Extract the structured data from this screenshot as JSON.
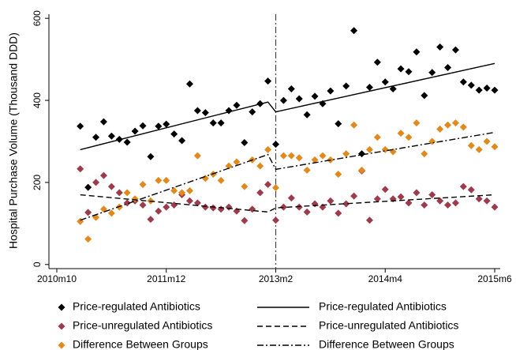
{
  "chart_data": {
    "type": "scatter",
    "y_label": "Hospital Purchase Volume (Thousand DDD)",
    "xlim": [
      "2010m10",
      "2015m6"
    ],
    "xticks": [
      "2010m10",
      "2011m12",
      "2013m2",
      "2014m4",
      "2015m6"
    ],
    "ylim": [
      -10,
      610
    ],
    "yticks": [
      0,
      200,
      400,
      600
    ],
    "intervention": "2013m2",
    "x": [
      "2011m1",
      "2011m2",
      "2011m3",
      "2011m4",
      "2011m5",
      "2011m6",
      "2011m7",
      "2011m8",
      "2011m9",
      "2011m10",
      "2011m11",
      "2011m12",
      "2012m1",
      "2012m2",
      "2012m3",
      "2012m4",
      "2012m5",
      "2012m6",
      "2012m7",
      "2012m8",
      "2012m9",
      "2012m10",
      "2012m11",
      "2012m12",
      "2013m1",
      "2013m2",
      "2013m3",
      "2013m4",
      "2013m5",
      "2013m6",
      "2013m7",
      "2013m8",
      "2013m9",
      "2013m10",
      "2013m11",
      "2013m12",
      "2014m1",
      "2014m2",
      "2014m3",
      "2014m4",
      "2014m5",
      "2014m6",
      "2014m7",
      "2014m8",
      "2014m9",
      "2014m10",
      "2014m11",
      "2014m12",
      "2015m1",
      "2015m2",
      "2015m3",
      "2015m4",
      "2015m5",
      "2015m6"
    ],
    "series": [
      {
        "name": "Price-regulated Antibiotics",
        "color": "#000000",
        "values": [
          337,
          188,
          310,
          348,
          313,
          305,
          298,
          325,
          338,
          263,
          337,
          342,
          318,
          302,
          440,
          375,
          370,
          345,
          345,
          375,
          388,
          297,
          372,
          392,
          447,
          293,
          400,
          428,
          404,
          365,
          410,
          392,
          423,
          343,
          435,
          570,
          270,
          432,
          493,
          445,
          428,
          477,
          470,
          518,
          412,
          468,
          530,
          480,
          523,
          445,
          437,
          425,
          430,
          425
        ]
      },
      {
        "name": "Price-unregulated Antibiotics",
        "color": "#9c3b4c",
        "values": [
          233,
          127,
          200,
          217,
          190,
          175,
          150,
          155,
          145,
          110,
          130,
          140,
          145,
          170,
          155,
          150,
          140,
          138,
          135,
          140,
          130,
          107,
          135,
          175,
          195,
          108,
          140,
          162,
          140,
          128,
          148,
          140,
          155,
          125,
          148,
          167,
          228,
          108,
          160,
          183,
          160,
          165,
          150,
          175,
          145,
          170,
          155,
          145,
          150,
          190,
          182,
          160,
          155,
          140
        ]
      },
      {
        "name": "Difference Between Groups",
        "color": "#e08a1e",
        "values": [
          105,
          62,
          115,
          135,
          125,
          140,
          175,
          160,
          195,
          155,
          205,
          205,
          180,
          175,
          180,
          265,
          210,
          220,
          205,
          240,
          250,
          190,
          255,
          240,
          280,
          187,
          265,
          265,
          260,
          230,
          255,
          265,
          255,
          220,
          270,
          340,
          230,
          280,
          310,
          280,
          275,
          320,
          310,
          345,
          270,
          300,
          330,
          340,
          345,
          335,
          290,
          280,
          300,
          287
        ]
      }
    ],
    "fitted": [
      {
        "name": "Price-regulated Antibiotics",
        "dash": "none",
        "x": [
          "2011m1",
          "2013m1",
          "2013m2",
          "2015m6"
        ],
        "values": [
          280,
          396,
          372,
          490
        ]
      },
      {
        "name": "Price-unregulated Antibiotics",
        "dash": "7 4",
        "x": [
          "2011m1",
          "2013m1",
          "2013m2",
          "2015m6"
        ],
        "values": [
          170,
          128,
          138,
          170
        ]
      },
      {
        "name": "Difference Between Groups",
        "dash": "8 3 2 3",
        "x": [
          "2011m1",
          "2013m1",
          "2013m2",
          "2015m6"
        ],
        "values": [
          108,
          268,
          232,
          322
        ]
      }
    ]
  }
}
